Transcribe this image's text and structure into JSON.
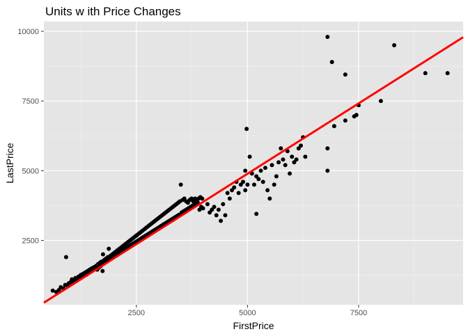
{
  "chart_data": {
    "type": "scatter",
    "title": "Units w ith Price Changes",
    "xlabel": "FirstPrice",
    "ylabel": "LastPrice",
    "xlim": [
      420,
      9850
    ],
    "ylim": [
      190,
      10350
    ],
    "x_ticks": [
      2500,
      5000,
      7500
    ],
    "x_tick_labels": [
      "2500",
      "5000",
      "7500"
    ],
    "x_minor": [
      1250,
      3750,
      6250,
      8750
    ],
    "y_ticks": [
      2500,
      5000,
      7500,
      10000
    ],
    "y_tick_labels": [
      "2500",
      "5000",
      "7500",
      "10000"
    ],
    "y_minor": [
      1250,
      3750,
      6250,
      8750
    ],
    "grid": true,
    "legend": "none",
    "panel_color": "#e5e5e5",
    "point_color": "#000000",
    "fit_line_color": "#ff0000",
    "fit_line": {
      "type": "linear",
      "slope": 1.01,
      "intercept": -160
    },
    "points": [
      [
        620,
        700
      ],
      [
        700,
        650
      ],
      [
        760,
        720
      ],
      [
        800,
        820
      ],
      [
        860,
        780
      ],
      [
        900,
        900
      ],
      [
        920,
        1900
      ],
      [
        950,
        880
      ],
      [
        980,
        960
      ],
      [
        1020,
        1000
      ],
      [
        1050,
        1100
      ],
      [
        1080,
        980
      ],
      [
        1100,
        1040
      ],
      [
        1130,
        1150
      ],
      [
        1160,
        1080
      ],
      [
        1200,
        1200
      ],
      [
        1220,
        1120
      ],
      [
        1250,
        1260
      ],
      [
        1280,
        1180
      ],
      [
        1300,
        1300
      ],
      [
        1320,
        1230
      ],
      [
        1350,
        1350
      ],
      [
        1380,
        1270
      ],
      [
        1400,
        1400
      ],
      [
        1420,
        1320
      ],
      [
        1450,
        1450
      ],
      [
        1470,
        1370
      ],
      [
        1500,
        1500
      ],
      [
        1520,
        1420
      ],
      [
        1550,
        1540
      ],
      [
        1570,
        1480
      ],
      [
        1600,
        1590
      ],
      [
        1620,
        1450
      ],
      [
        1640,
        1650
      ],
      [
        1660,
        1530
      ],
      [
        1680,
        1700
      ],
      [
        1700,
        1580
      ],
      [
        1720,
        1740
      ],
      [
        1740,
        1400
      ],
      [
        1750,
        2000
      ],
      [
        1760,
        1660
      ],
      [
        1780,
        1800
      ],
      [
        1800,
        1700
      ],
      [
        1820,
        1850
      ],
      [
        1840,
        1760
      ],
      [
        1860,
        1900
      ],
      [
        1880,
        2200
      ],
      [
        1900,
        1820
      ],
      [
        1920,
        1950
      ],
      [
        1940,
        1880
      ],
      [
        1960,
        2000
      ],
      [
        1980,
        1920
      ],
      [
        2000,
        2050
      ],
      [
        2020,
        1970
      ],
      [
        2040,
        2100
      ],
      [
        2060,
        2000
      ],
      [
        2080,
        2150
      ],
      [
        2100,
        2060
      ],
      [
        2120,
        2200
      ],
      [
        2140,
        2100
      ],
      [
        2160,
        2250
      ],
      [
        2180,
        2140
      ],
      [
        2200,
        2300
      ],
      [
        2220,
        2180
      ],
      [
        2240,
        2350
      ],
      [
        2260,
        2220
      ],
      [
        2280,
        2400
      ],
      [
        2300,
        2260
      ],
      [
        2320,
        2450
      ],
      [
        2340,
        2300
      ],
      [
        2360,
        2500
      ],
      [
        2380,
        2340
      ],
      [
        2400,
        2550
      ],
      [
        2420,
        2380
      ],
      [
        2440,
        2600
      ],
      [
        2460,
        2420
      ],
      [
        2480,
        2650
      ],
      [
        2500,
        2460
      ],
      [
        2520,
        2700
      ],
      [
        2540,
        2500
      ],
      [
        2560,
        2750
      ],
      [
        2580,
        2540
      ],
      [
        2600,
        2800
      ],
      [
        2620,
        2580
      ],
      [
        2640,
        2850
      ],
      [
        2660,
        2620
      ],
      [
        2680,
        2900
      ],
      [
        2700,
        2660
      ],
      [
        2720,
        2950
      ],
      [
        2740,
        2700
      ],
      [
        2760,
        3000
      ],
      [
        2780,
        2740
      ],
      [
        2800,
        3050
      ],
      [
        2820,
        2780
      ],
      [
        2840,
        3100
      ],
      [
        2860,
        2820
      ],
      [
        2880,
        3150
      ],
      [
        2900,
        2860
      ],
      [
        2920,
        3200
      ],
      [
        2940,
        2900
      ],
      [
        2960,
        3250
      ],
      [
        2980,
        2940
      ],
      [
        3000,
        3300
      ],
      [
        3020,
        2980
      ],
      [
        3040,
        3350
      ],
      [
        3060,
        3020
      ],
      [
        3080,
        3400
      ],
      [
        3100,
        3060
      ],
      [
        3120,
        3450
      ],
      [
        3140,
        3100
      ],
      [
        3160,
        3500
      ],
      [
        3180,
        3140
      ],
      [
        3200,
        3550
      ],
      [
        3220,
        3180
      ],
      [
        3240,
        3600
      ],
      [
        3260,
        3220
      ],
      [
        3280,
        3650
      ],
      [
        3300,
        3260
      ],
      [
        3320,
        3700
      ],
      [
        3340,
        3300
      ],
      [
        3360,
        3750
      ],
      [
        3380,
        3340
      ],
      [
        3400,
        3800
      ],
      [
        3420,
        3380
      ],
      [
        3440,
        3850
      ],
      [
        3460,
        3420
      ],
      [
        3480,
        3900
      ],
      [
        3500,
        4500
      ],
      [
        3520,
        3500
      ],
      [
        3540,
        3950
      ],
      [
        3560,
        3540
      ],
      [
        3580,
        4000
      ],
      [
        3600,
        3580
      ],
      [
        3620,
        3900
      ],
      [
        3640,
        3620
      ],
      [
        3660,
        3850
      ],
      [
        3680,
        3660
      ],
      [
        3700,
        3950
      ],
      [
        3720,
        3700
      ],
      [
        3740,
        4000
      ],
      [
        3760,
        3740
      ],
      [
        3780,
        3900
      ],
      [
        3800,
        3780
      ],
      [
        3820,
        4000
      ],
      [
        3840,
        3820
      ],
      [
        3860,
        3950
      ],
      [
        3880,
        3860
      ],
      [
        3900,
        4000
      ],
      [
        3920,
        3600
      ],
      [
        3940,
        4050
      ],
      [
        3960,
        3700
      ],
      [
        3980,
        4000
      ],
      [
        4000,
        3650
      ],
      [
        4100,
        3800
      ],
      [
        4150,
        3500
      ],
      [
        4200,
        3600
      ],
      [
        4250,
        3700
      ],
      [
        4300,
        3400
      ],
      [
        4350,
        3600
      ],
      [
        4400,
        3200
      ],
      [
        4450,
        3800
      ],
      [
        4500,
        3400
      ],
      [
        4550,
        4200
      ],
      [
        4600,
        4000
      ],
      [
        4650,
        4300
      ],
      [
        4700,
        4400
      ],
      [
        4750,
        4600
      ],
      [
        4800,
        4200
      ],
      [
        4850,
        4500
      ],
      [
        4900,
        4600
      ],
      [
        4950,
        4300
      ],
      [
        5000,
        4500
      ],
      [
        4950,
        5000
      ],
      [
        4980,
        6500
      ],
      [
        5050,
        5500
      ],
      [
        5100,
        4900
      ],
      [
        5150,
        4500
      ],
      [
        5200,
        4800
      ],
      [
        5250,
        4700
      ],
      [
        5300,
        5000
      ],
      [
        5350,
        4600
      ],
      [
        5400,
        5100
      ],
      [
        5450,
        4300
      ],
      [
        5500,
        4000
      ],
      [
        5550,
        5200
      ],
      [
        5600,
        4500
      ],
      [
        5650,
        4800
      ],
      [
        5700,
        5300
      ],
      [
        5750,
        5800
      ],
      [
        5800,
        5400
      ],
      [
        5850,
        5200
      ],
      [
        5900,
        5700
      ],
      [
        5950,
        4900
      ],
      [
        6000,
        5500
      ],
      [
        6050,
        5300
      ],
      [
        6100,
        5400
      ],
      [
        6150,
        5800
      ],
      [
        6200,
        5900
      ],
      [
        6250,
        6200
      ],
      [
        6300,
        5500
      ],
      [
        5200,
        3450
      ],
      [
        6800,
        5000
      ],
      [
        6800,
        5800
      ],
      [
        6800,
        9800
      ],
      [
        6900,
        8900
      ],
      [
        6950,
        6600
      ],
      [
        7200,
        8450
      ],
      [
        7200,
        6800
      ],
      [
        7400,
        6950
      ],
      [
        7450,
        7000
      ],
      [
        7500,
        7350
      ],
      [
        8000,
        7500
      ],
      [
        8300,
        9500
      ],
      [
        9000,
        8500
      ],
      [
        9500,
        8500
      ]
    ]
  }
}
